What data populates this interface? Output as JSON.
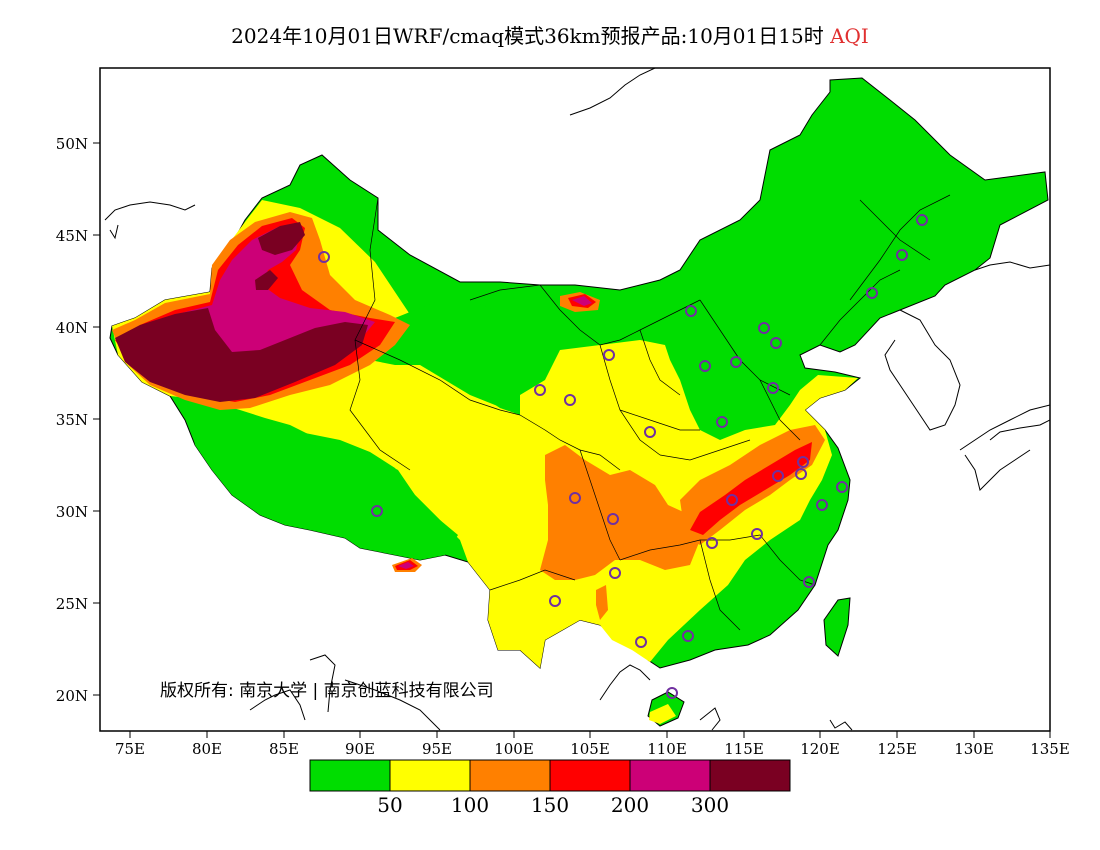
{
  "title": {
    "main": "2024年10月01日WRF/cmaq模式36km预报产品:10月01日15时",
    "variable": "AQI"
  },
  "axes": {
    "lat_labels": [
      "50N",
      "45N",
      "40N",
      "35N",
      "30N",
      "25N",
      "20N"
    ],
    "lon_labels": [
      "75E",
      "80E",
      "85E",
      "90E",
      "95E",
      "100E",
      "105E",
      "110E",
      "115E",
      "120E",
      "125E",
      "130E",
      "135E"
    ]
  },
  "copyright": "版权所有: 南京大学 | 南京创蓝科技有限公司",
  "legend": {
    "colors": [
      "#00dd00",
      "#ffff00",
      "#ff8000",
      "#ff0000",
      "#cc0077",
      "#7a0022"
    ],
    "labels": [
      "50",
      "100",
      "150",
      "200",
      "300"
    ]
  },
  "colors": {
    "good": "#00dd00",
    "moderate": "#ffff00",
    "sensitive": "#ff8000",
    "unhealthy": "#ff0000",
    "very_unhealthy": "#cc0077",
    "hazardous": "#7a0022",
    "city_marker": "#7030a0",
    "title_highlight": "#e03030"
  },
  "map": {
    "lon_range": [
      73,
      135
    ],
    "lat_range": [
      18,
      54
    ],
    "projection": "equirectangular",
    "background": "#ffffff"
  }
}
